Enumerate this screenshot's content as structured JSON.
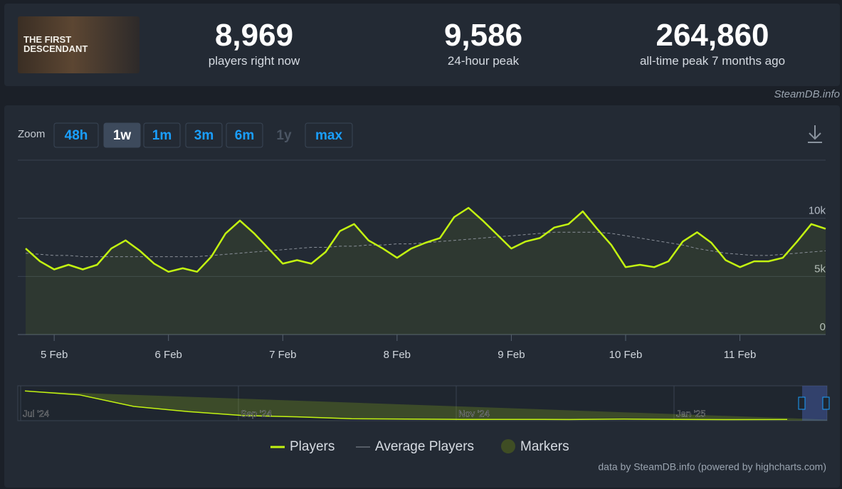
{
  "header": {
    "game_logo": "THE FIRST DESCENDANT",
    "stats": [
      {
        "value": "8,969",
        "label": "players right now"
      },
      {
        "value": "9,586",
        "label": "24-hour peak"
      },
      {
        "value": "264,860",
        "label": "all-time peak 7 months ago"
      }
    ],
    "credit": "SteamDB.info"
  },
  "controls": {
    "zoom_label": "Zoom",
    "zoom_buttons": [
      "48h",
      "1w",
      "1m",
      "3m",
      "6m",
      "1y",
      "max"
    ]
  },
  "chart_data": {
    "type": "line",
    "categories": [
      null,
      null,
      "5 Feb",
      null,
      null,
      null,
      null,
      null,
      null,
      null,
      "6 Feb",
      null,
      null,
      null,
      null,
      null,
      null,
      null,
      "7 Feb",
      null,
      null,
      null,
      null,
      null,
      null,
      null,
      "8 Feb",
      null,
      null,
      null,
      null,
      null,
      null,
      null,
      "9 Feb",
      null,
      null,
      null,
      null,
      null,
      null,
      null,
      "10 Feb",
      null,
      null,
      null,
      null,
      null,
      null,
      null,
      "11 Feb",
      null,
      null,
      null,
      null,
      null,
      null
    ],
    "series": [
      {
        "name": "Players",
        "color": "#c3f411",
        "values": [
          7400,
          6300,
          5600,
          6000,
          5600,
          6000,
          7400,
          8100,
          7200,
          6100,
          5400,
          5700,
          5400,
          6700,
          8700,
          9800,
          8700,
          7400,
          6100,
          6400,
          6100,
          7100,
          8900,
          9500,
          8100,
          7400,
          6600,
          7400,
          7900,
          8300,
          10100,
          10900,
          9800,
          8600,
          7400,
          8000,
          8300,
          9200,
          9500,
          10600,
          9100,
          7700,
          5800,
          6000,
          5800,
          6300,
          8000,
          8800,
          7900,
          6400,
          5800,
          6300,
          6300,
          6600,
          8000,
          9500,
          9100
        ]
      },
      {
        "name": "Average Players",
        "color": "#8a9099",
        "values": [
          7000,
          6900,
          6800,
          6800,
          6700,
          6700,
          6700,
          6700,
          6700,
          6700,
          6700,
          6700,
          6700,
          6800,
          6900,
          7000,
          7100,
          7200,
          7300,
          7400,
          7500,
          7500,
          7600,
          7600,
          7700,
          7700,
          7800,
          7800,
          7900,
          8000,
          8100,
          8200,
          8300,
          8400,
          8500,
          8600,
          8700,
          8800,
          8800,
          8800,
          8800,
          8700,
          8500,
          8300,
          8100,
          7900,
          7700,
          7400,
          7200,
          7000,
          6900,
          6800,
          6800,
          6900,
          7000,
          7100,
          7200
        ]
      }
    ],
    "marker_legend": "Markers",
    "ylim": [
      0,
      15000
    ],
    "yticks": [
      0,
      {
        "value": 5000,
        "label": "5k"
      },
      {
        "value": 10000,
        "label": "10k"
      }
    ],
    "grid": true,
    "navigator": {
      "categories": [
        "Jul '24",
        null,
        null,
        null,
        "Sep '24",
        null,
        null,
        null,
        "Nov '24",
        null,
        null,
        null,
        "Jan '25",
        null,
        null
      ],
      "values": [
        230000,
        200000,
        110000,
        70000,
        40000,
        30000,
        15000,
        12000,
        10000,
        10000,
        9000,
        12000,
        10000,
        8000,
        9000
      ],
      "ylim": [
        0,
        270000
      ]
    },
    "source": "data by SteamDB.info (powered by highcharts.com)"
  }
}
